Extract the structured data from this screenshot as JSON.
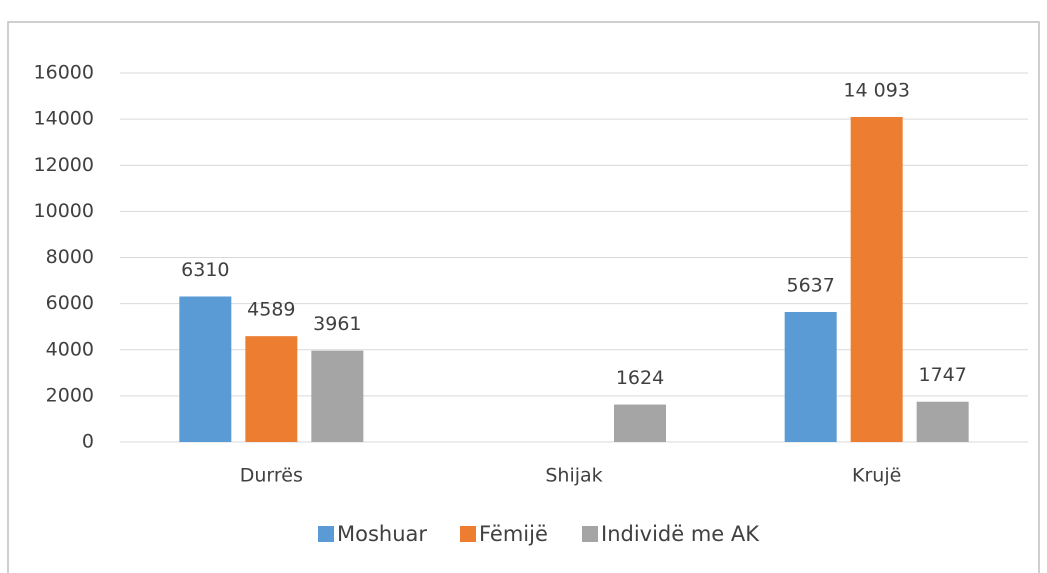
{
  "chart_data": {
    "type": "bar",
    "categories": [
      "Durrës",
      "Shijak",
      "Krujë"
    ],
    "series": [
      {
        "name": "Moshuar",
        "color": "#5b9bd5",
        "values": [
          6310,
          null,
          5637
        ]
      },
      {
        "name": "Fëmijë",
        "color": "#ed7d31",
        "values": [
          4589,
          null,
          14093
        ],
        "value_labels": [
          "4589",
          null,
          "14 093"
        ]
      },
      {
        "name": "Individë me AK",
        "color": "#a5a5a5",
        "values": [
          3961,
          1624,
          1747
        ]
      }
    ],
    "ylim": [
      0,
      16000
    ],
    "yticks": [
      0,
      2000,
      4000,
      6000,
      8000,
      10000,
      12000,
      14000,
      16000
    ],
    "grid": true,
    "legend": "bottom"
  }
}
